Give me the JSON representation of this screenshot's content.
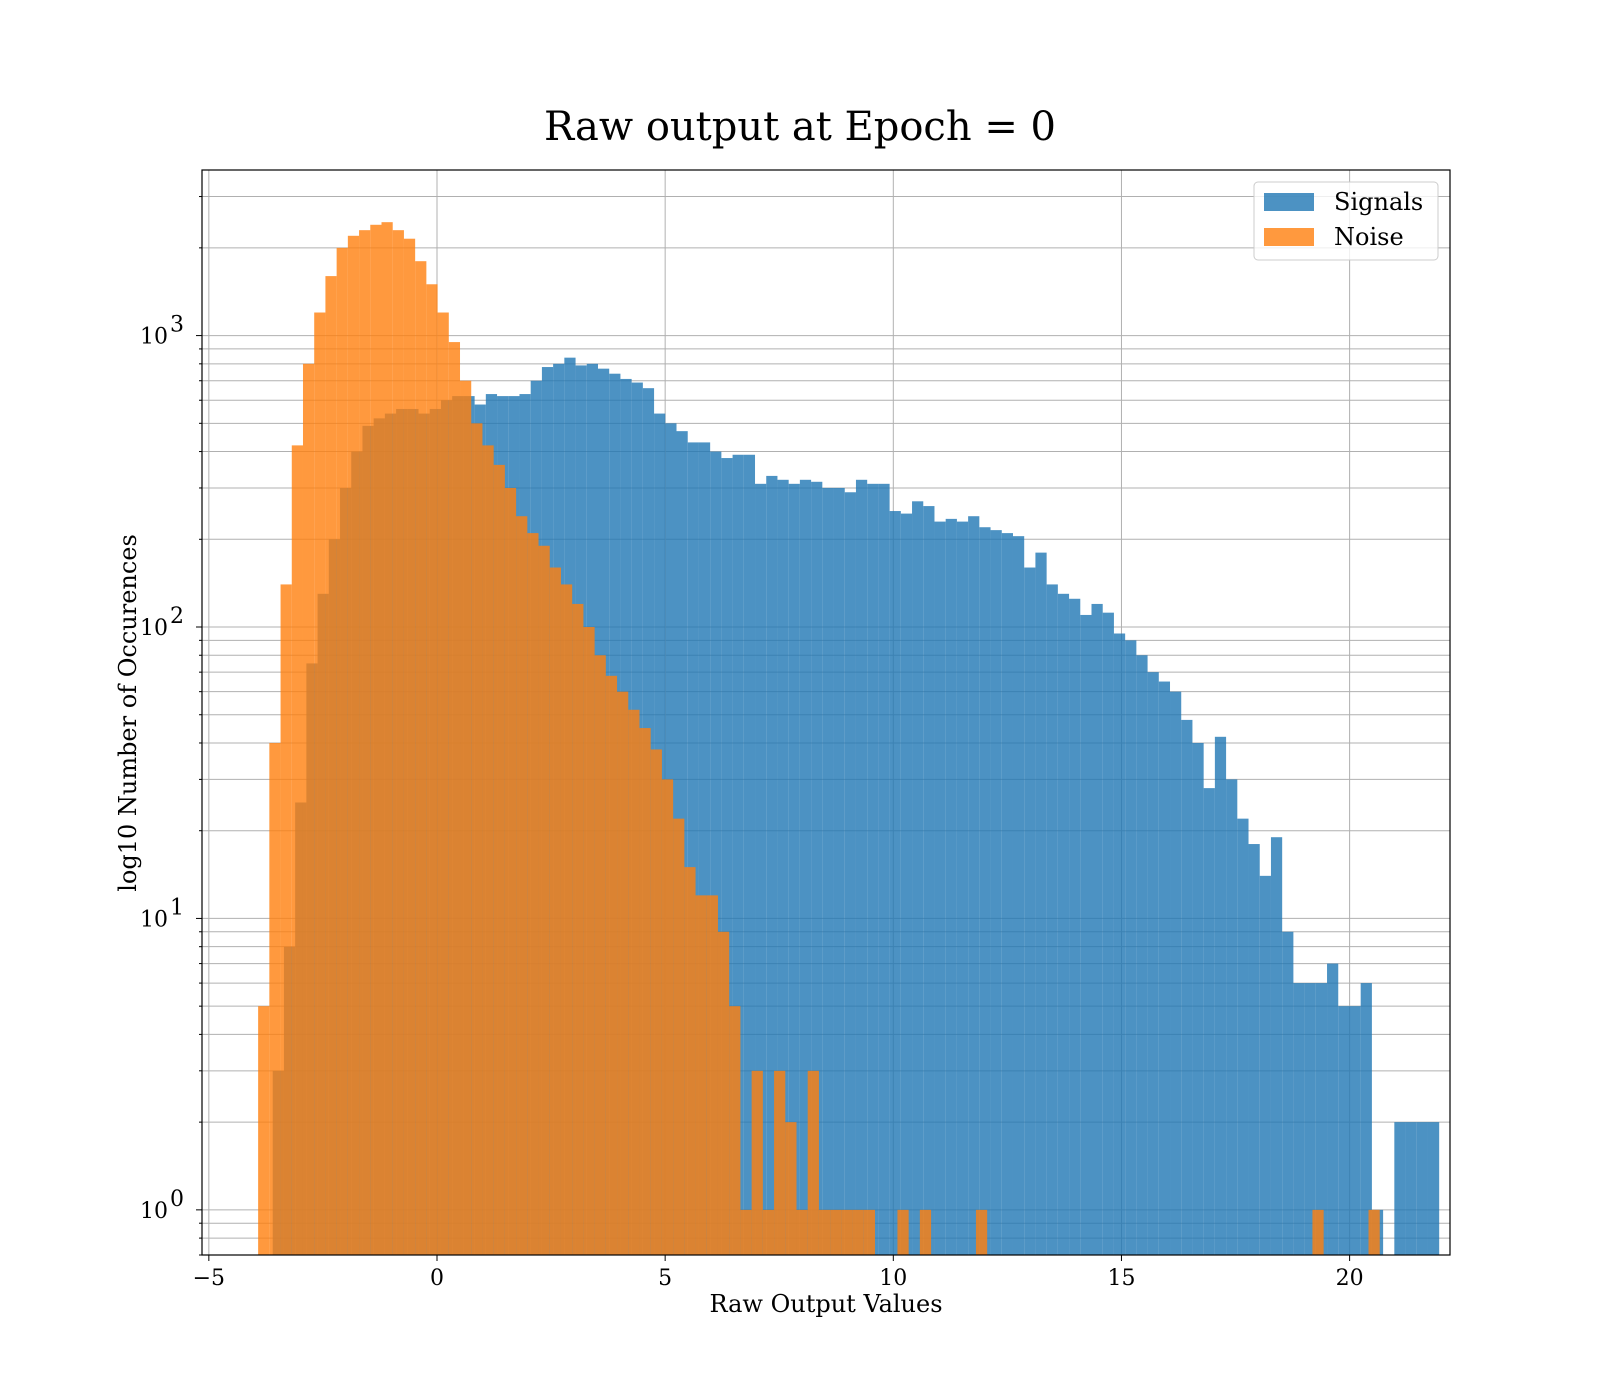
{
  "chart_data": {
    "type": "bar",
    "title": "Raw output at Epoch = 0",
    "xlabel": "Raw Output Values",
    "ylabel": "log10 Number of Occurences",
    "xlim": [
      -5.15,
      22.2
    ],
    "ylim": [
      0.7,
      3700
    ],
    "yscale": "log",
    "grid": true,
    "legend": "top-right",
    "x_ticks": [
      {
        "value": -5,
        "label": "−5"
      },
      {
        "value": 0,
        "label": "0"
      },
      {
        "value": 5,
        "label": "5"
      },
      {
        "value": 10,
        "label": "10"
      },
      {
        "value": 15,
        "label": "15"
      },
      {
        "value": 20,
        "label": "20"
      }
    ],
    "y_ticks": [
      {
        "value": 1,
        "base": "10",
        "exp": "0"
      },
      {
        "value": 10,
        "base": "10",
        "exp": "1"
      },
      {
        "value": 100,
        "base": "10",
        "exp": "2"
      },
      {
        "value": 1000,
        "base": "10",
        "exp": "3"
      }
    ],
    "series": [
      {
        "name": "Signals",
        "color": "#1f77b4",
        "opacity": 0.8,
        "bin_start": -3.6,
        "bin_width": 0.2458,
        "counts": [
          3,
          8,
          25,
          75,
          130,
          200,
          300,
          400,
          490,
          520,
          540,
          560,
          560,
          540,
          560,
          600,
          620,
          620,
          580,
          630,
          620,
          620,
          630,
          700,
          780,
          800,
          840,
          790,
          800,
          770,
          740,
          710,
          690,
          660,
          540,
          500,
          470,
          430,
          430,
          400,
          380,
          390,
          390,
          310,
          330,
          320,
          310,
          320,
          315,
          300,
          300,
          290,
          320,
          310,
          310,
          250,
          245,
          270,
          260,
          230,
          235,
          230,
          240,
          220,
          215,
          210,
          205,
          160,
          180,
          140,
          130,
          125,
          110,
          120,
          112,
          95,
          90,
          80,
          70,
          65,
          60,
          48,
          40,
          28,
          42,
          30,
          22,
          18,
          14,
          19,
          9,
          6,
          6,
          6,
          7,
          5,
          5,
          6,
          1,
          0,
          2,
          2,
          2,
          2
        ]
      },
      {
        "name": "Noise",
        "color": "#ff7f0e",
        "opacity": 0.8,
        "bin_start": -3.92,
        "bin_width": 0.2458,
        "counts": [
          5,
          40,
          140,
          420,
          800,
          1200,
          1600,
          2000,
          2200,
          2300,
          2400,
          2450,
          2300,
          2150,
          1800,
          1500,
          1200,
          950,
          700,
          500,
          420,
          360,
          300,
          240,
          210,
          190,
          160,
          140,
          120,
          100,
          80,
          68,
          60,
          52,
          45,
          38,
          30,
          22,
          15,
          12,
          12,
          9,
          5,
          1,
          3,
          1,
          3,
          2,
          1,
          3,
          1,
          1,
          1,
          1,
          1,
          0,
          0,
          1,
          0,
          1,
          0,
          0,
          0,
          0,
          1,
          0,
          0,
          0,
          0,
          0,
          0,
          0,
          0,
          0,
          0,
          0,
          0,
          0,
          0,
          0,
          0,
          0,
          0,
          0,
          0,
          0,
          0,
          0,
          0,
          0,
          0,
          0,
          0,
          0,
          1,
          0,
          0,
          0,
          0,
          1
        ]
      }
    ]
  }
}
